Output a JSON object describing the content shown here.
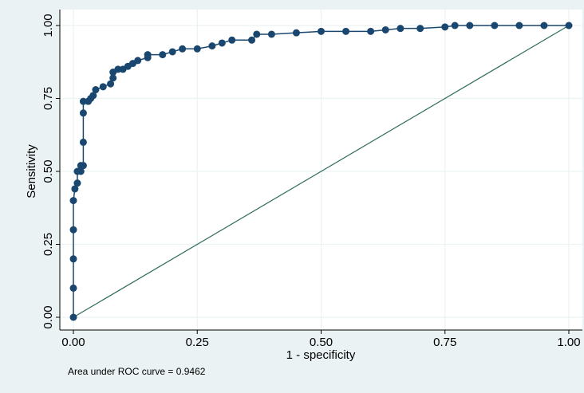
{
  "chart_data": {
    "type": "line",
    "x_label": "1 - specificity",
    "y_label": "Sensitivity",
    "annotation": "Area under ROC curve = 0.9462",
    "x": [
      0,
      0,
      0,
      0,
      0,
      0.003,
      0.008,
      0.008,
      0.015,
      0.015,
      0.02,
      0.02,
      0.02,
      0.02,
      0.03,
      0.035,
      0.04,
      0.045,
      0.06,
      0.075,
      0.08,
      0.08,
      0.09,
      0.1,
      0.11,
      0.12,
      0.13,
      0.15,
      0.15,
      0.18,
      0.2,
      0.22,
      0.25,
      0.28,
      0.3,
      0.32,
      0.36,
      0.37,
      0.4,
      0.45,
      0.5,
      0.55,
      0.6,
      0.63,
      0.66,
      0.7,
      0.75,
      0.77,
      0.8,
      0.85,
      0.9,
      0.95,
      1
    ],
    "values": [
      0,
      0.1,
      0.2,
      0.3,
      0.4,
      0.44,
      0.46,
      0.5,
      0.5,
      0.52,
      0.52,
      0.6,
      0.7,
      0.74,
      0.74,
      0.75,
      0.76,
      0.78,
      0.79,
      0.8,
      0.82,
      0.84,
      0.85,
      0.85,
      0.86,
      0.87,
      0.88,
      0.89,
      0.9,
      0.9,
      0.91,
      0.92,
      0.92,
      0.93,
      0.94,
      0.95,
      0.95,
      0.97,
      0.97,
      0.975,
      0.98,
      0.98,
      0.98,
      0.985,
      0.99,
      0.99,
      0.995,
      1,
      1,
      1,
      1,
      1,
      1
    ],
    "color": "#1a476f",
    "reference": {
      "x": [
        0,
        1
      ],
      "values": [
        0,
        1
      ],
      "color": "#2e6b5a"
    },
    "xlim": [
      0,
      1
    ],
    "ylim": [
      0,
      1
    ],
    "xticks": [
      {
        "value": 0,
        "label": "0.00"
      },
      {
        "value": 0.25,
        "label": "0.25"
      },
      {
        "value": 0.5,
        "label": "0.50"
      },
      {
        "value": 0.75,
        "label": "0.75"
      },
      {
        "value": 1,
        "label": "1.00"
      }
    ],
    "yticks": [
      {
        "value": 0,
        "label": "0.00"
      },
      {
        "value": 0.25,
        "label": "0.25"
      },
      {
        "value": 0.5,
        "label": "0.50"
      },
      {
        "value": 0.75,
        "label": "0.75"
      },
      {
        "value": 1,
        "label": "1.00"
      }
    ],
    "grid": true
  }
}
